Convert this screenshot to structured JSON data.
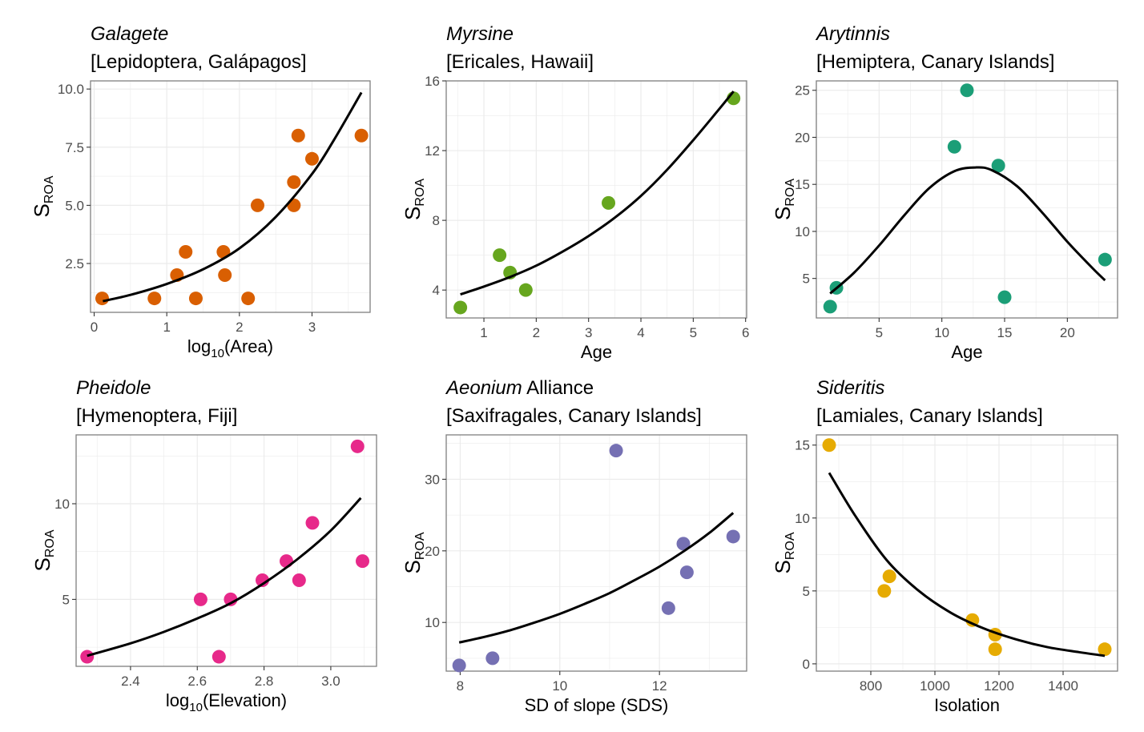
{
  "figure": {
    "y_axis_label_main": "S",
    "y_axis_label_sub": "ROA"
  },
  "chart_data": [
    {
      "type": "scatter",
      "panel": "top-left",
      "title_italic": "Galagete",
      "title_plain": "",
      "subtitle": "[Lepidoptera, Galápagos]",
      "xlabel_main": "log",
      "xlabel_sub": "10",
      "xlabel_rest": "(Area)",
      "ylabel": "SROA",
      "color": "#d95f02",
      "xlim": [
        -0.05,
        3.8
      ],
      "ylim": [
        0.4,
        10.35
      ],
      "xticks": [
        0,
        1,
        2,
        3
      ],
      "xtick_labels": [
        "0",
        "1",
        "2",
        "3"
      ],
      "yticks": [
        2.5,
        5.0,
        7.5,
        10.0
      ],
      "ytick_labels": [
        "2.5",
        "5.0",
        "7.5",
        "10.0"
      ],
      "grid": true,
      "points": [
        [
          0.11,
          1
        ],
        [
          0.83,
          1
        ],
        [
          1.14,
          2
        ],
        [
          1.26,
          3
        ],
        [
          1.4,
          1
        ],
        [
          1.78,
          3
        ],
        [
          1.8,
          2
        ],
        [
          2.12,
          1
        ],
        [
          2.25,
          5
        ],
        [
          2.75,
          6
        ],
        [
          2.75,
          5
        ],
        [
          2.81,
          8
        ],
        [
          3.0,
          7
        ],
        [
          3.68,
          8
        ]
      ],
      "fit": {
        "kind": "exp",
        "x_range": [
          0.12,
          3.68
        ],
        "points": [
          [
            0.12,
            0.88
          ],
          [
            0.5,
            1.15
          ],
          [
            1.0,
            1.62
          ],
          [
            1.5,
            2.25
          ],
          [
            2.0,
            3.15
          ],
          [
            2.5,
            4.5
          ],
          [
            3.0,
            6.35
          ],
          [
            3.3,
            7.8
          ],
          [
            3.68,
            9.85
          ]
        ]
      }
    },
    {
      "type": "scatter",
      "panel": "top-center",
      "title_italic": "Myrsine",
      "title_plain": "",
      "subtitle": "[Ericales, Hawaii]",
      "xlabel_main": "Age",
      "xlabel_sub": "",
      "xlabel_rest": "",
      "ylabel": "SROA",
      "color": "#66a61e",
      "xlim": [
        0.28,
        6.02
      ],
      "ylim": [
        2.4,
        16.0
      ],
      "xticks": [
        1,
        2,
        3,
        4,
        5,
        6
      ],
      "xtick_labels": [
        "1",
        "2",
        "3",
        "4",
        "5",
        "6"
      ],
      "yticks": [
        4,
        8,
        12,
        16
      ],
      "ytick_labels": [
        "4",
        "8",
        "12",
        "16"
      ],
      "grid": true,
      "points": [
        [
          0.55,
          3
        ],
        [
          1.3,
          6
        ],
        [
          1.5,
          5
        ],
        [
          1.8,
          4
        ],
        [
          3.38,
          9
        ],
        [
          5.77,
          15
        ]
      ],
      "fit": {
        "kind": "exp",
        "x_range": [
          0.55,
          5.77
        ],
        "points": [
          [
            0.55,
            3.75
          ],
          [
            1.0,
            4.2
          ],
          [
            1.5,
            4.75
          ],
          [
            2.0,
            5.4
          ],
          [
            2.5,
            6.2
          ],
          [
            3.0,
            7.1
          ],
          [
            3.5,
            8.15
          ],
          [
            4.0,
            9.4
          ],
          [
            4.5,
            10.9
          ],
          [
            5.0,
            12.6
          ],
          [
            5.5,
            14.4
          ],
          [
            5.77,
            15.4
          ]
        ]
      }
    },
    {
      "type": "scatter",
      "panel": "top-right",
      "title_italic": "Arytinnis",
      "title_plain": "",
      "subtitle": "[Hemiptera, Canary Islands]",
      "xlabel_main": "Age",
      "xlabel_sub": "",
      "xlabel_rest": "",
      "ylabel": "SROA",
      "color": "#1b9e77",
      "xlim": [
        0.0,
        24.0
      ],
      "ylim": [
        0.8,
        26.0
      ],
      "xticks": [
        5,
        10,
        15,
        20
      ],
      "xtick_labels": [
        "5",
        "10",
        "15",
        "20"
      ],
      "yticks": [
        5,
        10,
        15,
        20,
        25
      ],
      "ytick_labels": [
        "5",
        "10",
        "15",
        "20",
        "25"
      ],
      "grid": true,
      "points": [
        [
          1.1,
          2
        ],
        [
          1.6,
          4
        ],
        [
          11.0,
          19
        ],
        [
          12.0,
          25
        ],
        [
          14.5,
          17
        ],
        [
          15.0,
          3
        ],
        [
          23.0,
          7
        ]
      ],
      "fit": {
        "kind": "gaussian",
        "x_range": [
          1.1,
          23.0
        ],
        "points": [
          [
            1.1,
            3.4
          ],
          [
            3,
            5.6
          ],
          [
            5,
            8.5
          ],
          [
            7,
            11.7
          ],
          [
            9,
            14.6
          ],
          [
            11,
            16.4
          ],
          [
            12.7,
            16.8
          ],
          [
            14,
            16.5
          ],
          [
            16,
            14.8
          ],
          [
            18,
            12.0
          ],
          [
            20,
            8.9
          ],
          [
            22,
            6.1
          ],
          [
            23,
            4.8
          ]
        ]
      }
    },
    {
      "type": "scatter",
      "panel": "bottom-left",
      "title_italic": "Pheidole",
      "title_plain": "",
      "subtitle": "[Hymenoptera, Fiji]",
      "xlabel_main": "log",
      "xlabel_sub": "10",
      "xlabel_rest": "(Elevation)",
      "ylabel": "SROA",
      "color": "#e7298a",
      "xlim": [
        2.237,
        3.137
      ],
      "ylim": [
        1.5,
        13.6
      ],
      "xticks": [
        2.4,
        2.6,
        2.8,
        3.0
      ],
      "xtick_labels": [
        "2.4",
        "2.6",
        "2.8",
        "3.0"
      ],
      "yticks": [
        5,
        10
      ],
      "ytick_labels": [
        "5",
        "10"
      ],
      "grid": true,
      "points": [
        [
          2.27,
          2
        ],
        [
          2.61,
          5
        ],
        [
          2.665,
          2
        ],
        [
          2.7,
          5
        ],
        [
          2.795,
          6
        ],
        [
          2.867,
          7
        ],
        [
          2.905,
          6
        ],
        [
          2.945,
          9
        ],
        [
          3.08,
          13
        ],
        [
          3.095,
          7
        ]
      ],
      "fit": {
        "kind": "exp",
        "x_range": [
          2.27,
          3.09
        ],
        "points": [
          [
            2.27,
            2.05
          ],
          [
            2.4,
            2.7
          ],
          [
            2.5,
            3.3
          ],
          [
            2.6,
            4.0
          ],
          [
            2.7,
            4.8
          ],
          [
            2.8,
            5.85
          ],
          [
            2.9,
            7.1
          ],
          [
            3.0,
            8.6
          ],
          [
            3.09,
            10.3
          ]
        ]
      }
    },
    {
      "type": "scatter",
      "panel": "bottom-center",
      "title_italic": "Aeonium",
      "title_plain": " Alliance",
      "subtitle": "[Saxifragales, Canary Islands]",
      "xlabel_main": "SD of slope (SDS)",
      "xlabel_sub": "",
      "xlabel_rest": "",
      "ylabel": "SROA",
      "color": "#7570b3",
      "xlim": [
        7.72,
        13.75
      ],
      "ylim": [
        3.2,
        36.2
      ],
      "xticks": [
        8,
        10,
        12
      ],
      "xtick_labels": [
        "8",
        "10",
        "12"
      ],
      "yticks": [
        10,
        20,
        30
      ],
      "ytick_labels": [
        "10",
        "20",
        "30"
      ],
      "grid": true,
      "points": [
        [
          7.98,
          4
        ],
        [
          8.65,
          5
        ],
        [
          11.13,
          34
        ],
        [
          12.18,
          12
        ],
        [
          12.48,
          21
        ],
        [
          12.55,
          17
        ],
        [
          13.48,
          22
        ]
      ],
      "fit": {
        "kind": "exp",
        "x_range": [
          7.98,
          13.48
        ],
        "points": [
          [
            7.98,
            7.2
          ],
          [
            8.5,
            8.0
          ],
          [
            9.0,
            8.9
          ],
          [
            9.5,
            10.0
          ],
          [
            10.0,
            11.2
          ],
          [
            10.5,
            12.6
          ],
          [
            11.0,
            14.1
          ],
          [
            11.5,
            15.9
          ],
          [
            12.0,
            17.8
          ],
          [
            12.5,
            20.0
          ],
          [
            13.0,
            22.5
          ],
          [
            13.48,
            25.3
          ]
        ]
      }
    },
    {
      "type": "scatter",
      "panel": "bottom-right",
      "title_italic": "Sideritis",
      "title_plain": "",
      "subtitle": "[Lamiales, Canary Islands]",
      "xlabel_main": "Isolation",
      "xlabel_sub": "",
      "xlabel_rest": "",
      "ylabel": "SROA",
      "color": "#e6ab02",
      "xlim": [
        630,
        1570
      ],
      "ylim": [
        -0.5,
        15.7
      ],
      "xticks": [
        800,
        1000,
        1200,
        1400
      ],
      "xtick_labels": [
        "800",
        "1000",
        "1200",
        "1400"
      ],
      "yticks": [
        0,
        5,
        10,
        15
      ],
      "ytick_labels": [
        "0",
        "5",
        "10",
        "15"
      ],
      "grid": true,
      "points": [
        [
          670,
          15
        ],
        [
          842,
          5
        ],
        [
          858,
          6
        ],
        [
          1117,
          3
        ],
        [
          1188,
          2
        ],
        [
          1188,
          1
        ],
        [
          1530,
          1
        ]
      ],
      "fit": {
        "kind": "exp",
        "x_range": [
          670,
          1530
        ],
        "points": [
          [
            670,
            13.1
          ],
          [
            750,
            10.2
          ],
          [
            850,
            7.1
          ],
          [
            950,
            5.0
          ],
          [
            1050,
            3.5
          ],
          [
            1150,
            2.45
          ],
          [
            1250,
            1.7
          ],
          [
            1350,
            1.15
          ],
          [
            1450,
            0.8
          ],
          [
            1530,
            0.55
          ]
        ]
      }
    }
  ]
}
